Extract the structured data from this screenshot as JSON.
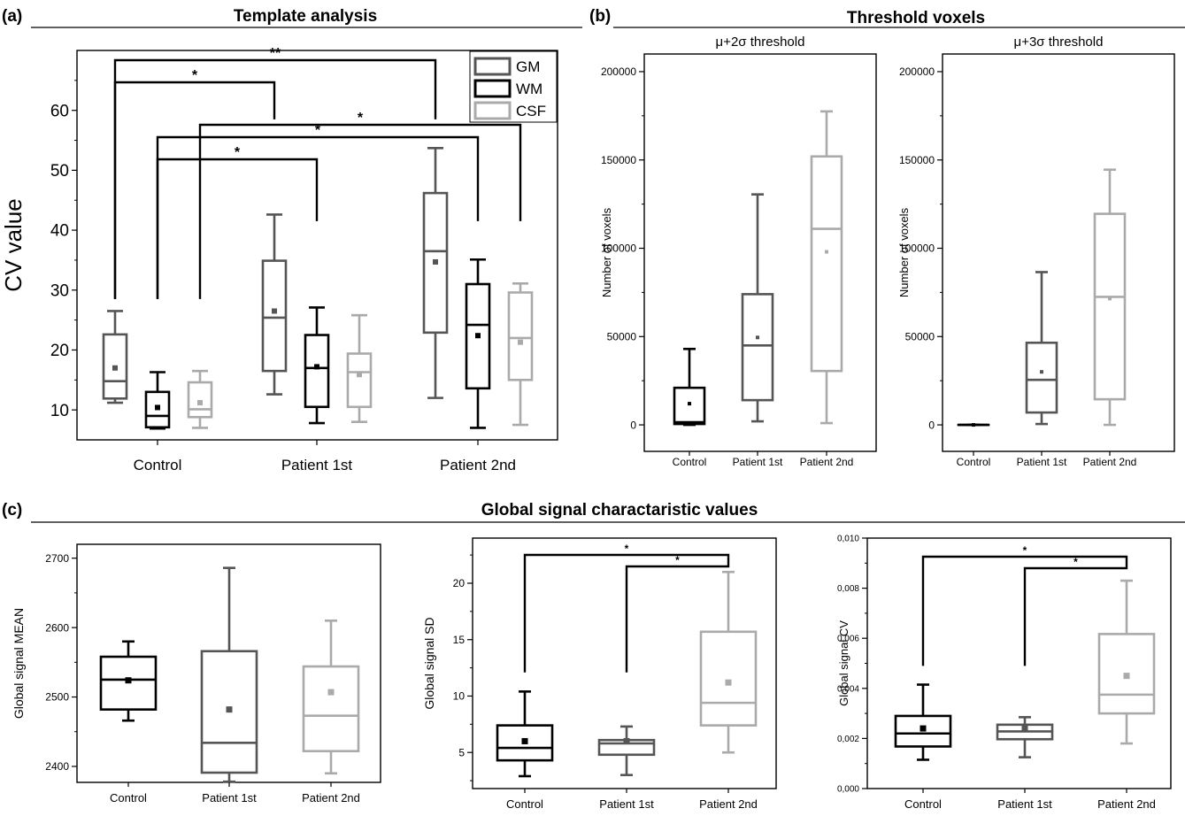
{
  "figure": {
    "panel_a": {
      "label": "(a)",
      "title": "Template analysis"
    },
    "panel_b": {
      "label": "(b)",
      "title": "Threshold voxels"
    },
    "panel_c": {
      "label": "(c)",
      "title": "Global signal charactaristic values"
    }
  },
  "chart_data": [
    {
      "id": "template",
      "type": "box",
      "title": "Template analysis",
      "xlabel": "",
      "ylabel": "CV value",
      "ylim": [
        5,
        70
      ],
      "yticks": [
        10,
        20,
        30,
        40,
        50,
        60
      ],
      "categories": [
        "Control",
        "Patient 1st",
        "Patient 2nd"
      ],
      "legend": {
        "position": "top-right",
        "entries": [
          "GM",
          "WM",
          "CSF"
        ]
      },
      "series": [
        {
          "name": "GM",
          "color": "#555555",
          "boxes": [
            {
              "min": 11.2,
              "q1": 11.9,
              "median": 14.8,
              "q3": 22.6,
              "max": 26.5,
              "mean": 17.0
            },
            {
              "min": 12.6,
              "q1": 16.5,
              "median": 25.4,
              "q3": 34.9,
              "max": 42.6,
              "mean": 26.5
            },
            {
              "min": 12.0,
              "q1": 22.9,
              "median": 36.5,
              "q3": 46.2,
              "max": 53.7,
              "mean": 34.7
            }
          ]
        },
        {
          "name": "WM",
          "color": "#000000",
          "boxes": [
            {
              "min": 6.9,
              "q1": 7.1,
              "median": 9.0,
              "q3": 13.0,
              "max": 16.3,
              "mean": 10.4
            },
            {
              "min": 7.8,
              "q1": 10.5,
              "median": 17.0,
              "q3": 22.5,
              "max": 27.1,
              "mean": 17.2
            },
            {
              "min": 7.0,
              "q1": 13.6,
              "median": 24.2,
              "q3": 31.0,
              "max": 35.1,
              "mean": 22.4
            }
          ]
        },
        {
          "name": "CSF",
          "color": "#aaaaaa",
          "boxes": [
            {
              "min": 7.0,
              "q1": 8.8,
              "median": 10.1,
              "q3": 14.6,
              "max": 16.5,
              "mean": 11.2
            },
            {
              "min": 8.0,
              "q1": 10.5,
              "median": 16.3,
              "q3": 19.4,
              "max": 25.8,
              "mean": 15.9
            },
            {
              "min": 7.5,
              "q1": 15.0,
              "median": 22.0,
              "q3": 29.6,
              "max": 31.1,
              "mean": 21.3
            }
          ]
        }
      ],
      "significance": [
        {
          "label": "**",
          "from": "Control GM",
          "to": "Patient 2nd GM"
        },
        {
          "label": "*",
          "from": "Control GM",
          "to": "Patient 1st GM"
        },
        {
          "label": "*",
          "from": "Control CSF",
          "to": "Patient 2nd CSF"
        },
        {
          "label": "*",
          "from": "Control WM",
          "to": "Patient 2nd WM"
        },
        {
          "label": "*",
          "from": "Control WM",
          "to": "Patient 1st WM"
        }
      ]
    },
    {
      "id": "thr2",
      "type": "box",
      "title": "μ+2σ threshold",
      "xlabel": "",
      "ylabel": "Number of voxels",
      "ylim": [
        -15000,
        210000
      ],
      "yticks": [
        0,
        50000,
        100000,
        150000,
        200000
      ],
      "categories": [
        "Control",
        "Patient 1st",
        "Patient 2nd"
      ],
      "boxes": [
        {
          "color": "#000000",
          "min": 0,
          "q1": 500,
          "median": 1500,
          "q3": 21000,
          "max": 43000,
          "mean": 12000
        },
        {
          "color": "#555555",
          "min": 2000,
          "q1": 14000,
          "median": 45000,
          "q3": 74000,
          "max": 130500,
          "mean": 49500
        },
        {
          "color": "#aaaaaa",
          "min": 1000,
          "q1": 30500,
          "median": 111000,
          "q3": 152000,
          "max": 177500,
          "mean": 98000
        }
      ]
    },
    {
      "id": "thr3",
      "type": "box",
      "title": "μ+3σ threshold",
      "xlabel": "",
      "ylabel": "Number of voxels",
      "ylim": [
        -15000,
        210000
      ],
      "yticks": [
        0,
        50000,
        100000,
        150000,
        200000
      ],
      "categories": [
        "Control",
        "Patient 1st",
        "Patient 2nd"
      ],
      "boxes": [
        {
          "color": "#000000",
          "min": 0,
          "q1": 0,
          "median": 0,
          "q3": 0,
          "max": 0,
          "mean": 0
        },
        {
          "color": "#555555",
          "min": 500,
          "q1": 7000,
          "median": 25500,
          "q3": 46500,
          "max": 86500,
          "mean": 30000
        },
        {
          "color": "#aaaaaa",
          "min": 0,
          "q1": 14500,
          "median": 72500,
          "q3": 119500,
          "max": 144500,
          "mean": 71500
        }
      ]
    },
    {
      "id": "gmean",
      "type": "box",
      "title": "",
      "xlabel": "",
      "ylabel": "Global signal MEAN",
      "ylim": [
        2377,
        2720
      ],
      "yticks": [
        2400,
        2500,
        2600,
        2700
      ],
      "categories": [
        "Control",
        "Patient 1st",
        "Patient 2nd"
      ],
      "boxes": [
        {
          "color": "#000000",
          "min": 2466,
          "q1": 2482,
          "median": 2525,
          "q3": 2558,
          "max": 2580,
          "mean": 2524
        },
        {
          "color": "#555555",
          "min": 2378,
          "q1": 2391,
          "median": 2434,
          "q3": 2566,
          "max": 2686,
          "mean": 2482
        },
        {
          "color": "#aaaaaa",
          "min": 2390,
          "q1": 2422,
          "median": 2473,
          "q3": 2544,
          "max": 2610,
          "mean": 2507
        }
      ]
    },
    {
      "id": "gsd",
      "type": "box",
      "title": "",
      "xlabel": "",
      "ylabel": "Global signal SD",
      "ylim": [
        1.8,
        24
      ],
      "yticks": [
        5,
        10,
        15,
        20
      ],
      "categories": [
        "Control",
        "Patient 1st",
        "Patient 2nd"
      ],
      "boxes": [
        {
          "color": "#000000",
          "min": 2.9,
          "q1": 4.3,
          "median": 5.4,
          "q3": 7.4,
          "max": 10.4,
          "mean": 6.0
        },
        {
          "color": "#555555",
          "min": 3.0,
          "q1": 4.8,
          "median": 5.8,
          "q3": 6.1,
          "max": 7.3,
          "mean": 6.0
        },
        {
          "color": "#aaaaaa",
          "min": 5.0,
          "q1": 7.4,
          "median": 9.4,
          "q3": 15.7,
          "max": 21.0,
          "mean": 11.2
        }
      ],
      "significance": [
        {
          "label": "*",
          "from": "Control",
          "to": "Patient 2nd"
        },
        {
          "label": "*",
          "from": "Patient 1st",
          "to": "Patient 2nd"
        }
      ]
    },
    {
      "id": "gcv",
      "type": "box",
      "title": "",
      "xlabel": "",
      "ylabel": "Global signal CV",
      "ylim": [
        0,
        0.01
      ],
      "yticks": [
        0,
        0.002,
        0.004,
        0.006,
        0.008,
        0.01
      ],
      "yticklabels": [
        "0,000",
        "0,002",
        "0,004",
        "0,006",
        "0,008",
        "0,010"
      ],
      "categories": [
        "Control",
        "Patient 1st",
        "Patient 2nd"
      ],
      "boxes": [
        {
          "color": "#000000",
          "min": 0.00115,
          "q1": 0.00168,
          "median": 0.0022,
          "q3": 0.0029,
          "max": 0.00415,
          "mean": 0.0024
        },
        {
          "color": "#555555",
          "min": 0.00125,
          "q1": 0.00197,
          "median": 0.00228,
          "q3": 0.00255,
          "max": 0.00285,
          "mean": 0.00243
        },
        {
          "color": "#aaaaaa",
          "min": 0.0018,
          "q1": 0.003,
          "median": 0.00375,
          "q3": 0.00617,
          "max": 0.0083,
          "mean": 0.0045
        }
      ],
      "significance": [
        {
          "label": "*",
          "from": "Control",
          "to": "Patient 2nd"
        },
        {
          "label": "*",
          "from": "Patient 1st",
          "to": "Patient 2nd"
        }
      ]
    }
  ]
}
